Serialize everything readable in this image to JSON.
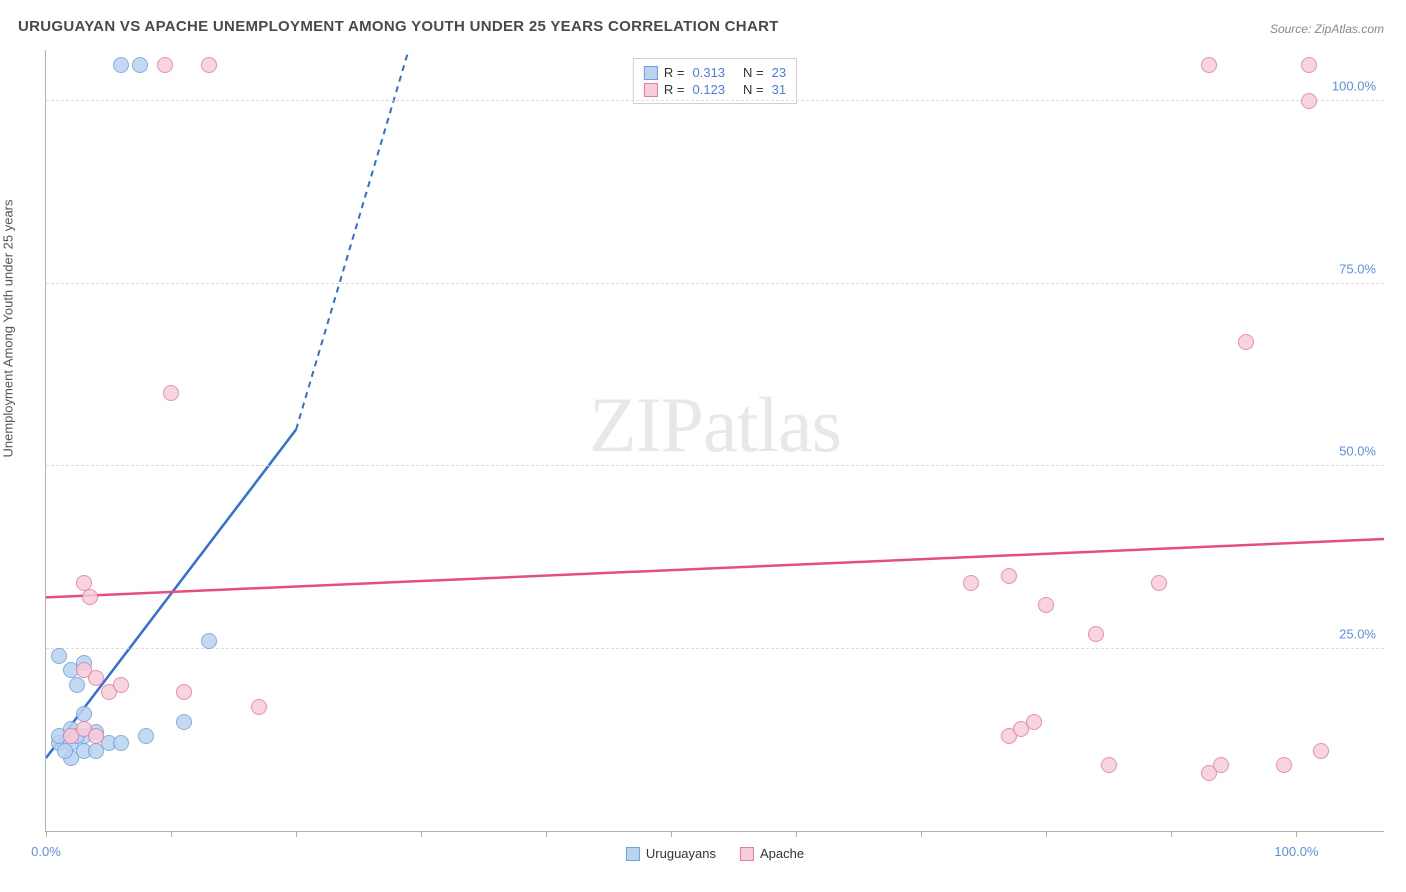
{
  "title": "URUGUAYAN VS APACHE UNEMPLOYMENT AMONG YOUTH UNDER 25 YEARS CORRELATION CHART",
  "source": "Source: ZipAtlas.com",
  "ylabel": "Unemployment Among Youth under 25 years",
  "watermark_a": "ZIP",
  "watermark_b": "atlas",
  "chart": {
    "type": "scatter",
    "xlim": [
      0,
      107
    ],
    "ylim": [
      0,
      107
    ],
    "yticks": [
      25,
      50,
      75,
      100
    ],
    "ytick_labels": [
      "25.0%",
      "50.0%",
      "75.0%",
      "100.0%"
    ],
    "xticks_minor": [
      0,
      10,
      20,
      30,
      40,
      50,
      60,
      70,
      80,
      90,
      100
    ],
    "xtick_labels": {
      "0": "0.0%",
      "100": "100.0%"
    },
    "grid_color": "#dcdcdc",
    "background": "#ffffff",
    "marker_radius": 8,
    "series": [
      {
        "name": "Uruguayans",
        "color_fill": "#b9d3f0",
        "color_stroke": "#6da0e0",
        "r_value": "0.313",
        "n_value": "23",
        "trend": {
          "x1": 0,
          "y1": 10,
          "x2_solid": 20,
          "y2_solid": 55,
          "x2_dash": 29,
          "y2_dash": 107,
          "color": "#2f6fd6",
          "width": 2.5
        },
        "points": [
          [
            1,
            12
          ],
          [
            1,
            13
          ],
          [
            2,
            12
          ],
          [
            2,
            14
          ],
          [
            2,
            10
          ],
          [
            3,
            13
          ],
          [
            1.5,
            11
          ],
          [
            2.5,
            13
          ],
          [
            3,
            11
          ],
          [
            4,
            11
          ],
          [
            5,
            12
          ],
          [
            6,
            12
          ],
          [
            3,
            16
          ],
          [
            4,
            13.5
          ],
          [
            1,
            24
          ],
          [
            2,
            22
          ],
          [
            3,
            23
          ],
          [
            2.5,
            20
          ],
          [
            8,
            13
          ],
          [
            11,
            15
          ],
          [
            13,
            26
          ],
          [
            6,
            105
          ],
          [
            7.5,
            105
          ]
        ]
      },
      {
        "name": "Apache",
        "color_fill": "#f7cdd9",
        "color_stroke": "#e87ba0",
        "r_value": "0.123",
        "n_value": "31",
        "trend": {
          "x1": 0,
          "y1": 32,
          "x2_solid": 107,
          "y2_solid": 40,
          "color": "#e54f7f",
          "width": 2.5
        },
        "points": [
          [
            2,
            13
          ],
          [
            3,
            14
          ],
          [
            4,
            13
          ],
          [
            4,
            21
          ],
          [
            5,
            19
          ],
          [
            3,
            22
          ],
          [
            3,
            34
          ],
          [
            3.5,
            32
          ],
          [
            6,
            20
          ],
          [
            11,
            19
          ],
          [
            17,
            17
          ],
          [
            10,
            60
          ],
          [
            9.5,
            105
          ],
          [
            13,
            105
          ],
          [
            74,
            34
          ],
          [
            77,
            35
          ],
          [
            80,
            31
          ],
          [
            77,
            13
          ],
          [
            78,
            14
          ],
          [
            79,
            15
          ],
          [
            84,
            27
          ],
          [
            85,
            9
          ],
          [
            89,
            34
          ],
          [
            93,
            8
          ],
          [
            94,
            9
          ],
          [
            96,
            67
          ],
          [
            99,
            9
          ],
          [
            93,
            105
          ],
          [
            101,
            105
          ],
          [
            101,
            100
          ],
          [
            102,
            11
          ]
        ]
      }
    ]
  },
  "legend_bottom": [
    {
      "label": "Uruguayans",
      "fill": "#b9d3f0",
      "stroke": "#6da0e0"
    },
    {
      "label": "Apache",
      "fill": "#f7cdd9",
      "stroke": "#e87ba0"
    }
  ]
}
